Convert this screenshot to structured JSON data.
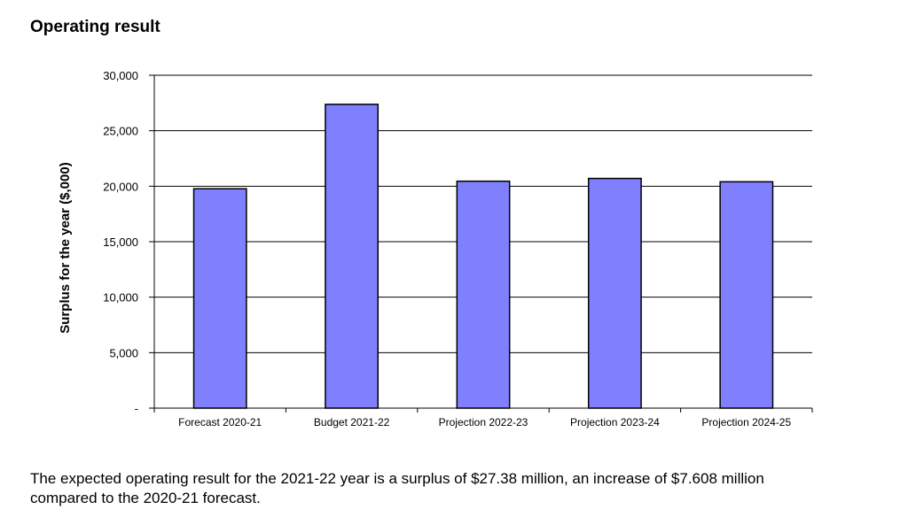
{
  "heading": "Operating result",
  "chart_data": {
    "type": "bar",
    "ylabel": "Surplus for the year ($,000)",
    "xlabel": "",
    "categories": [
      "Forecast 2020-21",
      "Budget 2021-22",
      "Projection 2022-23",
      "Projection 2023-24",
      "Projection 2024-25"
    ],
    "values": [
      19772,
      27380,
      20450,
      20700,
      20400
    ],
    "ylim": [
      0,
      30000
    ],
    "yticks": [
      0,
      5000,
      10000,
      15000,
      20000,
      25000,
      30000
    ],
    "ytick_labels": [
      "-",
      "5,000",
      "10,000",
      "15,000",
      "20,000",
      "25,000",
      "30,000"
    ],
    "grid": true,
    "bar_color": "#8080ff",
    "legend": false
  },
  "caption": "The expected operating result for the 2021-22 year is a surplus of $27.38 million, an increase of $7.608 million compared to the 2020-21 forecast."
}
